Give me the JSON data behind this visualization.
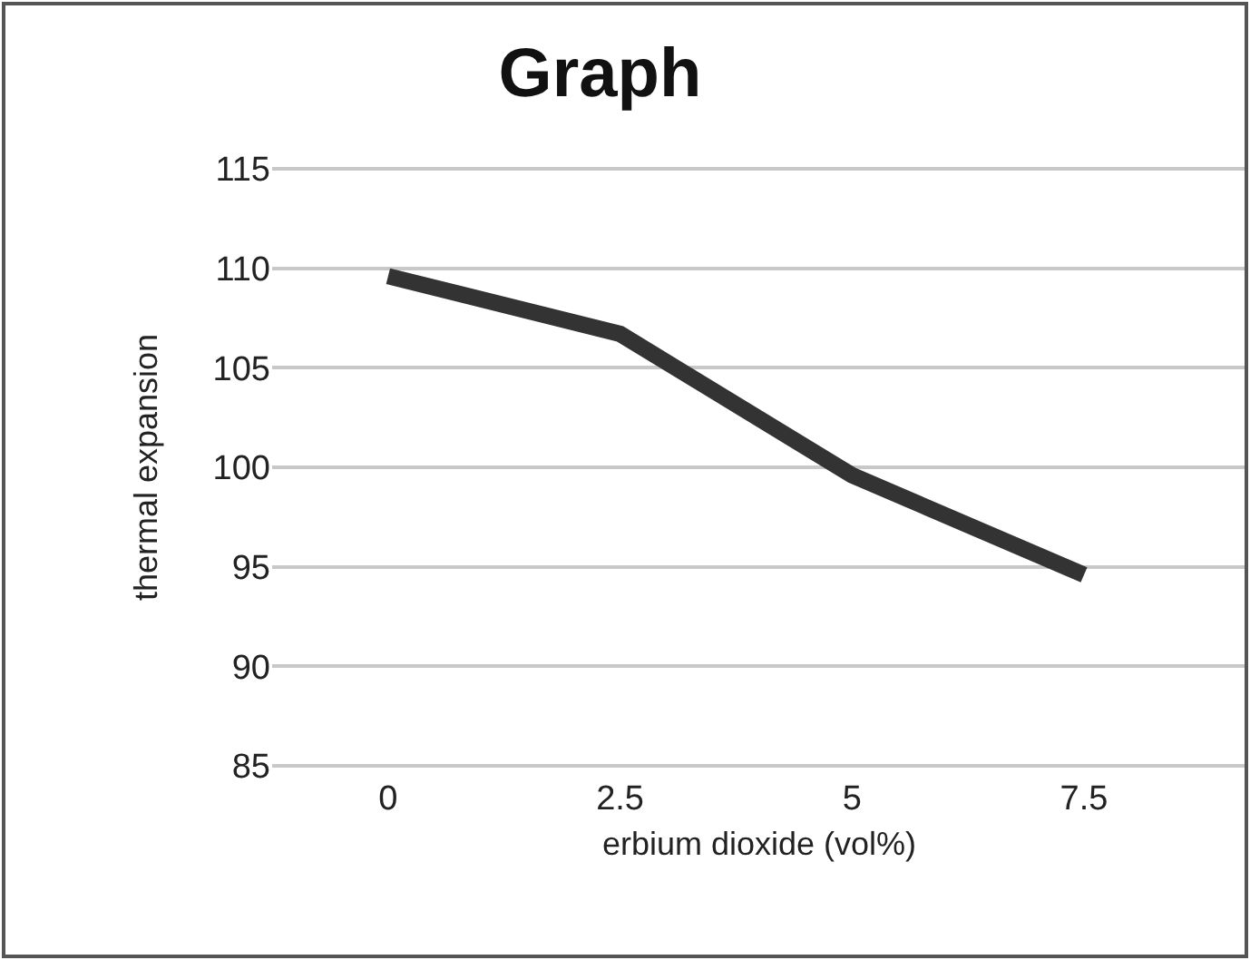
{
  "chart_data": {
    "type": "line",
    "title": "Graph",
    "xlabel": "erbium dioxide (vol%)",
    "ylabel": "thermal expansion",
    "categories": [
      "0",
      "2.5",
      "5",
      "7.5"
    ],
    "series": [
      {
        "color": "#333333",
        "values": [
          109.6,
          106.7,
          99.6,
          94.6
        ]
      }
    ],
    "ylim": [
      85,
      115
    ],
    "yticks": [
      85,
      90,
      95,
      100,
      105,
      110,
      115
    ],
    "grid": "y",
    "marker": "none",
    "line_style": "solid"
  }
}
